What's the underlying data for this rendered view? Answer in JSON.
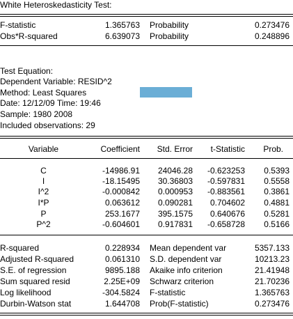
{
  "test_title": "White Heteroskedasticity Test:",
  "test_stats": [
    {
      "label": "F-statistic",
      "value": "1.365763",
      "prob_label": "Probability",
      "prob": "0.273476"
    },
    {
      "label": "Obs*R-squared",
      "value": "6.639073",
      "prob_label": "Probability",
      "prob": "0.248896"
    }
  ],
  "equation_info": [
    "Test Equation:",
    "Dependent Variable: RESID^2",
    "Method: Least Squares",
    "Date: 12/12/09   Time: 19:46",
    "Sample: 1980 2008",
    "Included observations: 29"
  ],
  "highlight_color": "#6baed6",
  "coef_headers": [
    "Variable",
    "Coefficient",
    "Std. Error",
    "t-Statistic",
    "Prob."
  ],
  "coef_rows": [
    [
      "C",
      "-14986.91",
      "24046.28",
      "-0.623253",
      "0.5393"
    ],
    [
      "I",
      "-18.15495",
      "30.36803",
      "-0.597831",
      "0.5558"
    ],
    [
      "I^2",
      "-0.000842",
      "0.000953",
      "-0.883561",
      "0.3861"
    ],
    [
      "I*P",
      "0.063612",
      "0.090281",
      "0.704602",
      "0.4881"
    ],
    [
      "P",
      "253.1677",
      "395.1575",
      "0.640676",
      "0.5281"
    ],
    [
      "P^2",
      "-0.604601",
      "0.917831",
      "-0.658728",
      "0.5166"
    ]
  ],
  "summary_rows": [
    [
      "R-squared",
      "0.228934",
      "Mean dependent var",
      "5357.133"
    ],
    [
      "Adjusted R-squared",
      "0.061310",
      "S.D. dependent var",
      "10213.23"
    ],
    [
      "S.E. of regression",
      "9895.188",
      "Akaike info criterion",
      "21.41948"
    ],
    [
      "Sum squared resid",
      "2.25E+09",
      "Schwarz criterion",
      "21.70236"
    ],
    [
      "Log likelihood",
      "-304.5824",
      "F-statistic",
      "1.365763"
    ],
    [
      "Durbin-Watson stat",
      "1.644708",
      "Prob(F-statistic)",
      "0.273476"
    ]
  ]
}
